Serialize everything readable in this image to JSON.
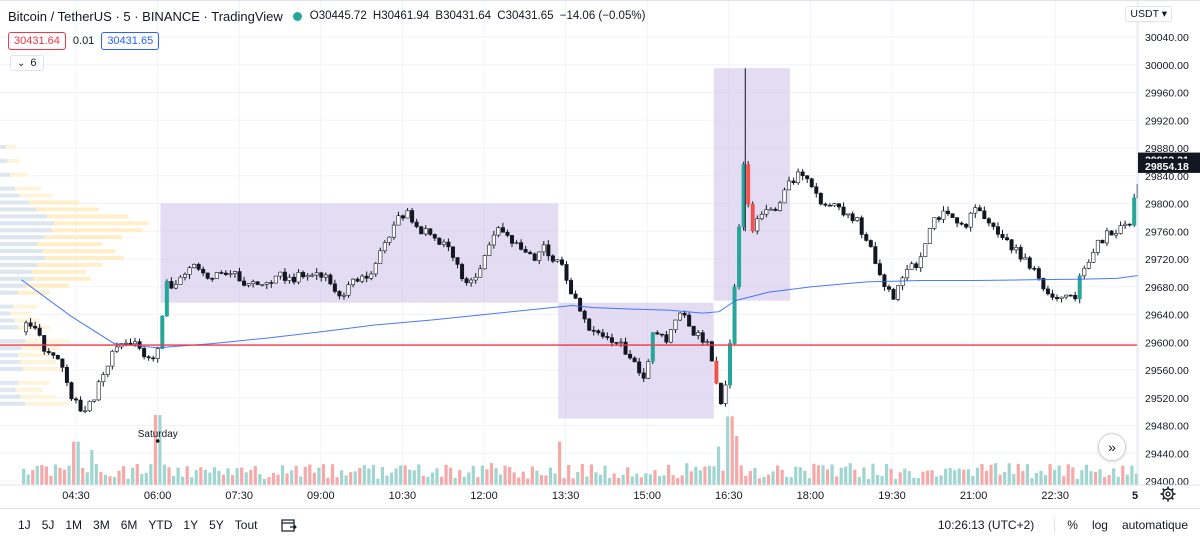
{
  "header": {
    "symbol": "Bitcoin / TetherUS · 5 · BINANCE · TradingView",
    "open_label": "O",
    "open": "30445.72",
    "high_label": "H",
    "high": "30461.94",
    "low_label": "B",
    "low": "30431.64",
    "close_label": "C",
    "close": "30431.65",
    "change": "−14.06 (−0.05%)",
    "status_color": "#26a69a"
  },
  "quote": {
    "bid": "30431.64",
    "spread": "0.01",
    "ask": "30431.65"
  },
  "indicators": {
    "toggle_chevron": "⌄",
    "count": "6"
  },
  "currency": "USDT ▾",
  "chart_data": {
    "type": "candlestick",
    "symbol": "BTCUSDT",
    "timeframe": "5",
    "ylim": [
      29400,
      30060
    ],
    "y_ticks": [
      29400,
      29440,
      29480,
      29520,
      29560,
      29600,
      29640,
      29680,
      29720,
      29760,
      29800,
      29840,
      29880,
      29920,
      29960,
      30000,
      30040
    ],
    "y_tick_labels": [
      "29400.00",
      "29440.00",
      "29480.00",
      "29520.00",
      "29560.00",
      "29600.00",
      "29640.00",
      "29680.00",
      "29720.00",
      "29760.00",
      "29800.00",
      "29840.00",
      "29880.00",
      "29920.00",
      "29960.00",
      "30000.00",
      "30040.00"
    ],
    "x_ticks": [
      "04:30",
      "06:00",
      "07:30",
      "09:00",
      "10:30",
      "12:00",
      "13:30",
      "15:00",
      "16:30",
      "18:00",
      "19:30",
      "21:00",
      "22:30",
      "5"
    ],
    "x_range_hours": [
      3.5,
      24.15
    ],
    "price_labels": [
      {
        "value": 29863.31,
        "text": "29863.31",
        "color": "#131722"
      },
      {
        "value": 29854.18,
        "text": "29854.18",
        "color": "#131722"
      }
    ],
    "horizontal_line": {
      "value": 29596,
      "color": "#f23645"
    },
    "event_marker": {
      "time": 6.0,
      "label": "Saturday"
    },
    "boxes": [
      {
        "t0": 6.05,
        "t1": 13.35,
        "p0": 29800,
        "p1": 29657
      },
      {
        "t0": 13.35,
        "t1": 16.2,
        "p0": 29657,
        "p1": 29490
      },
      {
        "t0": 16.2,
        "t1": 17.6,
        "p0": 29995,
        "p1": 29660
      }
    ],
    "vwap": [
      [
        3.5,
        29690
      ],
      [
        4.4,
        29638
      ],
      [
        5.2,
        29598
      ],
      [
        6.0,
        29592
      ],
      [
        7.0,
        29598
      ],
      [
        8.0,
        29606
      ],
      [
        9.0,
        29615
      ],
      [
        10.0,
        29625
      ],
      [
        11.0,
        29632
      ],
      [
        12.0,
        29640
      ],
      [
        13.0,
        29648
      ],
      [
        13.6,
        29653
      ],
      [
        14.0,
        29650
      ],
      [
        14.6,
        29648
      ],
      [
        15.4,
        29646
      ],
      [
        16.0,
        29642
      ],
      [
        16.3,
        29644
      ],
      [
        16.6,
        29660
      ],
      [
        17.2,
        29672
      ],
      [
        18.0,
        29680
      ],
      [
        19.0,
        29687
      ],
      [
        20.0,
        29689
      ],
      [
        21.0,
        29689
      ],
      [
        22.0,
        29690
      ],
      [
        23.0,
        29691
      ],
      [
        23.6,
        29692
      ],
      [
        24.15,
        29698
      ]
    ],
    "price_path": [
      [
        3.5,
        29615
      ],
      [
        3.7,
        29630
      ],
      [
        3.9,
        29590
      ],
      [
        4.2,
        29575
      ],
      [
        4.4,
        29520
      ],
      [
        4.6,
        29505
      ],
      [
        4.8,
        29510
      ],
      [
        5.0,
        29560
      ],
      [
        5.2,
        29590
      ],
      [
        5.4,
        29600
      ],
      [
        5.6,
        29595
      ],
      [
        5.8,
        29580
      ],
      [
        5.95,
        29570
      ],
      [
        6.05,
        29605
      ],
      [
        6.15,
        29690
      ],
      [
        6.3,
        29680
      ],
      [
        6.5,
        29700
      ],
      [
        6.8,
        29710
      ],
      [
        7.0,
        29690
      ],
      [
        7.3,
        29705
      ],
      [
        7.6,
        29685
      ],
      [
        7.9,
        29680
      ],
      [
        8.2,
        29695
      ],
      [
        8.5,
        29690
      ],
      [
        8.8,
        29705
      ],
      [
        9.1,
        29690
      ],
      [
        9.3,
        29665
      ],
      [
        9.6,
        29690
      ],
      [
        9.9,
        29700
      ],
      [
        10.2,
        29745
      ],
      [
        10.4,
        29780
      ],
      [
        10.6,
        29785
      ],
      [
        10.8,
        29760
      ],
      [
        11.0,
        29755
      ],
      [
        11.2,
        29745
      ],
      [
        11.4,
        29730
      ],
      [
        11.6,
        29690
      ],
      [
        11.8,
        29690
      ],
      [
        12.0,
        29720
      ],
      [
        12.2,
        29760
      ],
      [
        12.4,
        29755
      ],
      [
        12.6,
        29740
      ],
      [
        12.9,
        29720
      ],
      [
        13.1,
        29735
      ],
      [
        13.4,
        29710
      ],
      [
        13.6,
        29670
      ],
      [
        13.9,
        29625
      ],
      [
        14.2,
        29610
      ],
      [
        14.5,
        29595
      ],
      [
        14.8,
        29565
      ],
      [
        14.95,
        29545
      ],
      [
        15.1,
        29620
      ],
      [
        15.3,
        29600
      ],
      [
        15.6,
        29640
      ],
      [
        15.9,
        29610
      ],
      [
        16.1,
        29600
      ],
      [
        16.2,
        29565
      ],
      [
        16.35,
        29505
      ],
      [
        16.5,
        29595
      ],
      [
        16.6,
        29700
      ],
      [
        16.75,
        29860
      ],
      [
        16.9,
        29750
      ],
      [
        17.05,
        29790
      ],
      [
        17.2,
        29790
      ],
      [
        17.4,
        29800
      ],
      [
        17.6,
        29830
      ],
      [
        17.8,
        29850
      ],
      [
        18.0,
        29830
      ],
      [
        18.2,
        29800
      ],
      [
        18.5,
        29790
      ],
      [
        18.8,
        29780
      ],
      [
        19.1,
        29730
      ],
      [
        19.3,
        29690
      ],
      [
        19.5,
        29660
      ],
      [
        19.7,
        29700
      ],
      [
        20.0,
        29720
      ],
      [
        20.2,
        29770
      ],
      [
        20.5,
        29790
      ],
      [
        20.8,
        29765
      ],
      [
        21.0,
        29790
      ],
      [
        21.3,
        29770
      ],
      [
        21.6,
        29740
      ],
      [
        21.9,
        29720
      ],
      [
        22.2,
        29690
      ],
      [
        22.4,
        29660
      ],
      [
        22.6,
        29665
      ],
      [
        22.8,
        29660
      ],
      [
        22.95,
        29700
      ],
      [
        23.2,
        29740
      ],
      [
        23.5,
        29760
      ],
      [
        23.8,
        29765
      ],
      [
        24.0,
        29830
      ],
      [
        24.15,
        29855
      ]
    ],
    "volume_profile": [
      [
        29880,
        0.1
      ],
      [
        29860,
        0.12
      ],
      [
        29840,
        0.17
      ],
      [
        29820,
        0.25
      ],
      [
        29810,
        0.32
      ],
      [
        29800,
        0.48
      ],
      [
        29790,
        0.6
      ],
      [
        29780,
        0.78
      ],
      [
        29770,
        0.9
      ],
      [
        29760,
        0.86
      ],
      [
        29750,
        0.74
      ],
      [
        29740,
        0.62
      ],
      [
        29730,
        0.7
      ],
      [
        29720,
        0.75
      ],
      [
        29710,
        0.62
      ],
      [
        29700,
        0.52
      ],
      [
        29690,
        0.55
      ],
      [
        29680,
        0.42
      ],
      [
        29670,
        0.3
      ],
      [
        29650,
        0.22
      ],
      [
        29640,
        0.18
      ],
      [
        29630,
        0.24
      ],
      [
        29620,
        0.3
      ],
      [
        29600,
        0.42
      ],
      [
        29590,
        0.36
      ],
      [
        29580,
        0.3
      ],
      [
        29570,
        0.34
      ],
      [
        29560,
        0.38
      ],
      [
        29540,
        0.3
      ],
      [
        29530,
        0.26
      ],
      [
        29520,
        0.34
      ],
      [
        29510,
        0.42
      ]
    ],
    "volume_spikes": [
      [
        6.0,
        1.0
      ],
      [
        16.5,
        0.98
      ],
      [
        16.3,
        0.55
      ],
      [
        16.6,
        0.7
      ],
      [
        4.5,
        0.62
      ],
      [
        4.8,
        0.5
      ],
      [
        13.35,
        0.62
      ],
      [
        5.6,
        0.3
      ],
      [
        10.5,
        0.28
      ],
      [
        13.8,
        0.3
      ]
    ]
  },
  "timeframes": [
    "1J",
    "5J",
    "1M",
    "3M",
    "6M",
    "YTD",
    "1Y",
    "5Y",
    "Tout"
  ],
  "clock": "10:26:13 (UTC+2)",
  "options": {
    "percent": "%",
    "log": "log",
    "auto": "automatique"
  },
  "scroll_button": "»",
  "colors": {
    "up": "#26a69a",
    "down": "#ef5350",
    "box": "#d1c4e9",
    "vwap": "#2962ff"
  }
}
